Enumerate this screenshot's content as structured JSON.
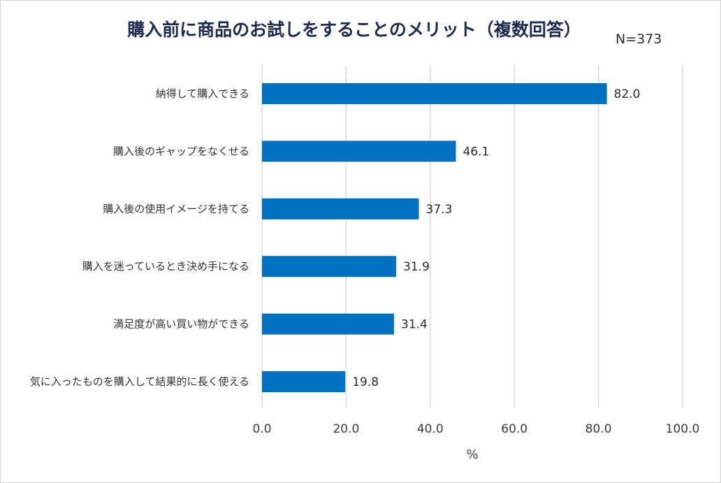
{
  "chart_data": {
    "type": "bar",
    "orientation": "horizontal",
    "title": "購入前に商品のお試しをすることのメリット（複数回答）",
    "note": "N=373",
    "xlabel": "%",
    "ylabel": "",
    "xlim": [
      0,
      100
    ],
    "ticks": [
      "0.0",
      "20.0",
      "40.0",
      "60.0",
      "80.0",
      "100.0"
    ],
    "tick_values": [
      0,
      20,
      40,
      60,
      80,
      100
    ],
    "categories": [
      "納得して購入できる",
      "購入後のギャップをなくせる",
      "購入後の使用イメージを持てる",
      "購入を迷っているとき決め手になる",
      "満足度が高い買い物ができる",
      "気に入ったものを購入して結果的に長く使える"
    ],
    "values": [
      82.0,
      46.1,
      37.3,
      31.9,
      31.4,
      19.8
    ],
    "value_labels": [
      "82.0",
      "46.1",
      "37.3",
      "31.9",
      "31.4",
      "19.8"
    ],
    "grid": "vertical",
    "legend": "none",
    "colors": {
      "bar": "#0070c0",
      "grid": "#d9d9d9"
    }
  }
}
